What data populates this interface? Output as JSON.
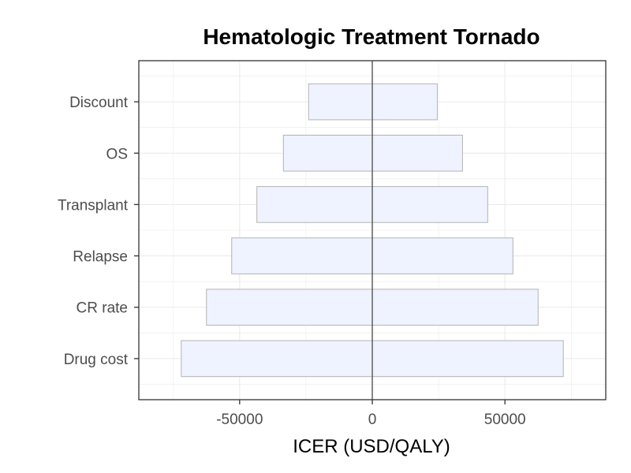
{
  "chart_data": {
    "type": "bar",
    "orientation": "horizontal",
    "subtype": "tornado",
    "title": "Hematologic Treatment Tornado",
    "xlabel": "ICER (USD/QALY)",
    "ylabel": "",
    "categories": [
      "Drug cost",
      "CR rate",
      "Relapse",
      "Transplant",
      "OS",
      "Discount"
    ],
    "series": [
      {
        "values_low": [
          -72000,
          -62500,
          -53000,
          -43500,
          -33500,
          -24000
        ],
        "values_high": [
          72000,
          62500,
          53000,
          43500,
          34000,
          24500
        ]
      }
    ],
    "xlim": [
      -88000,
      88000
    ],
    "x_ticks": [
      -50000,
      0,
      50000
    ],
    "x_tick_labels": [
      "-50000",
      "0",
      "50000"
    ],
    "grid": true,
    "reference_line_x": 0,
    "colors": {
      "bar_fill": "#eef3ff",
      "bar_stroke": "#b3b3b3",
      "grid": "#ebebeb",
      "panel_border": "#333333",
      "zero_line": "#555555"
    }
  }
}
